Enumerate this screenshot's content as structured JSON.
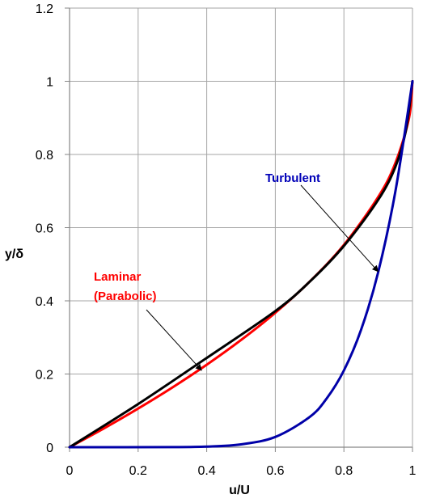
{
  "chart_data": {
    "type": "line",
    "title": "",
    "xlabel": "u/U",
    "ylabel": "y/δ",
    "xlim": [
      0,
      1
    ],
    "ylim": [
      0,
      1.2
    ],
    "x_ticks": [
      "0",
      "0.2",
      "0.4",
      "0.6",
      "0.8",
      "1"
    ],
    "y_ticks": [
      "0",
      "0.2",
      "0.4",
      "0.6",
      "0.8",
      "1",
      "1.2"
    ],
    "grid": true,
    "legend": "none",
    "series": [
      {
        "color": "#ff0000",
        "points": [
          [
            0,
            0
          ],
          [
            0.1,
            0.0513
          ],
          [
            0.2,
            0.1056
          ],
          [
            0.3,
            0.1633
          ],
          [
            0.4,
            0.2254
          ],
          [
            0.5,
            0.2929
          ],
          [
            0.6,
            0.3675
          ],
          [
            0.7,
            0.4523
          ],
          [
            0.8,
            0.5528
          ],
          [
            0.9,
            0.6838
          ],
          [
            0.95,
            0.7764
          ],
          [
            0.99,
            0.9
          ],
          [
            1,
            1
          ]
        ]
      },
      {
        "color": "#000000",
        "points": [
          [
            0,
            0
          ],
          [
            0.2,
            0.118
          ],
          [
            0.4,
            0.244
          ],
          [
            0.6,
            0.372
          ],
          [
            0.7,
            0.452
          ],
          [
            0.8,
            0.55
          ],
          [
            0.9,
            0.676
          ],
          [
            0.95,
            0.766
          ],
          [
            0.98,
            0.862
          ],
          [
            1,
            1
          ]
        ]
      },
      {
        "color": "#0000a8",
        "points": [
          [
            0,
            0
          ],
          [
            0.3,
            0.0002
          ],
          [
            0.4,
            0.0016
          ],
          [
            0.5,
            0.0078
          ],
          [
            0.6,
            0.028
          ],
          [
            0.7,
            0.0824
          ],
          [
            0.75,
            0.1335
          ],
          [
            0.8,
            0.2097
          ],
          [
            0.85,
            0.3206
          ],
          [
            0.9,
            0.4783
          ],
          [
            0.95,
            0.6983
          ],
          [
            1,
            1
          ]
        ]
      }
    ],
    "annotations": [
      {
        "lines": [
          "Laminar",
          "(Parabolic)"
        ],
        "color": "#ff0000",
        "points_to": [
          0.385,
          0.21
        ]
      },
      {
        "lines": [
          "Turbulent"
        ],
        "color": "#0000b8",
        "points_to": [
          0.9,
          0.48
        ]
      }
    ],
    "gridline_color": "#a6a6a6",
    "axis_color": "#868686"
  }
}
